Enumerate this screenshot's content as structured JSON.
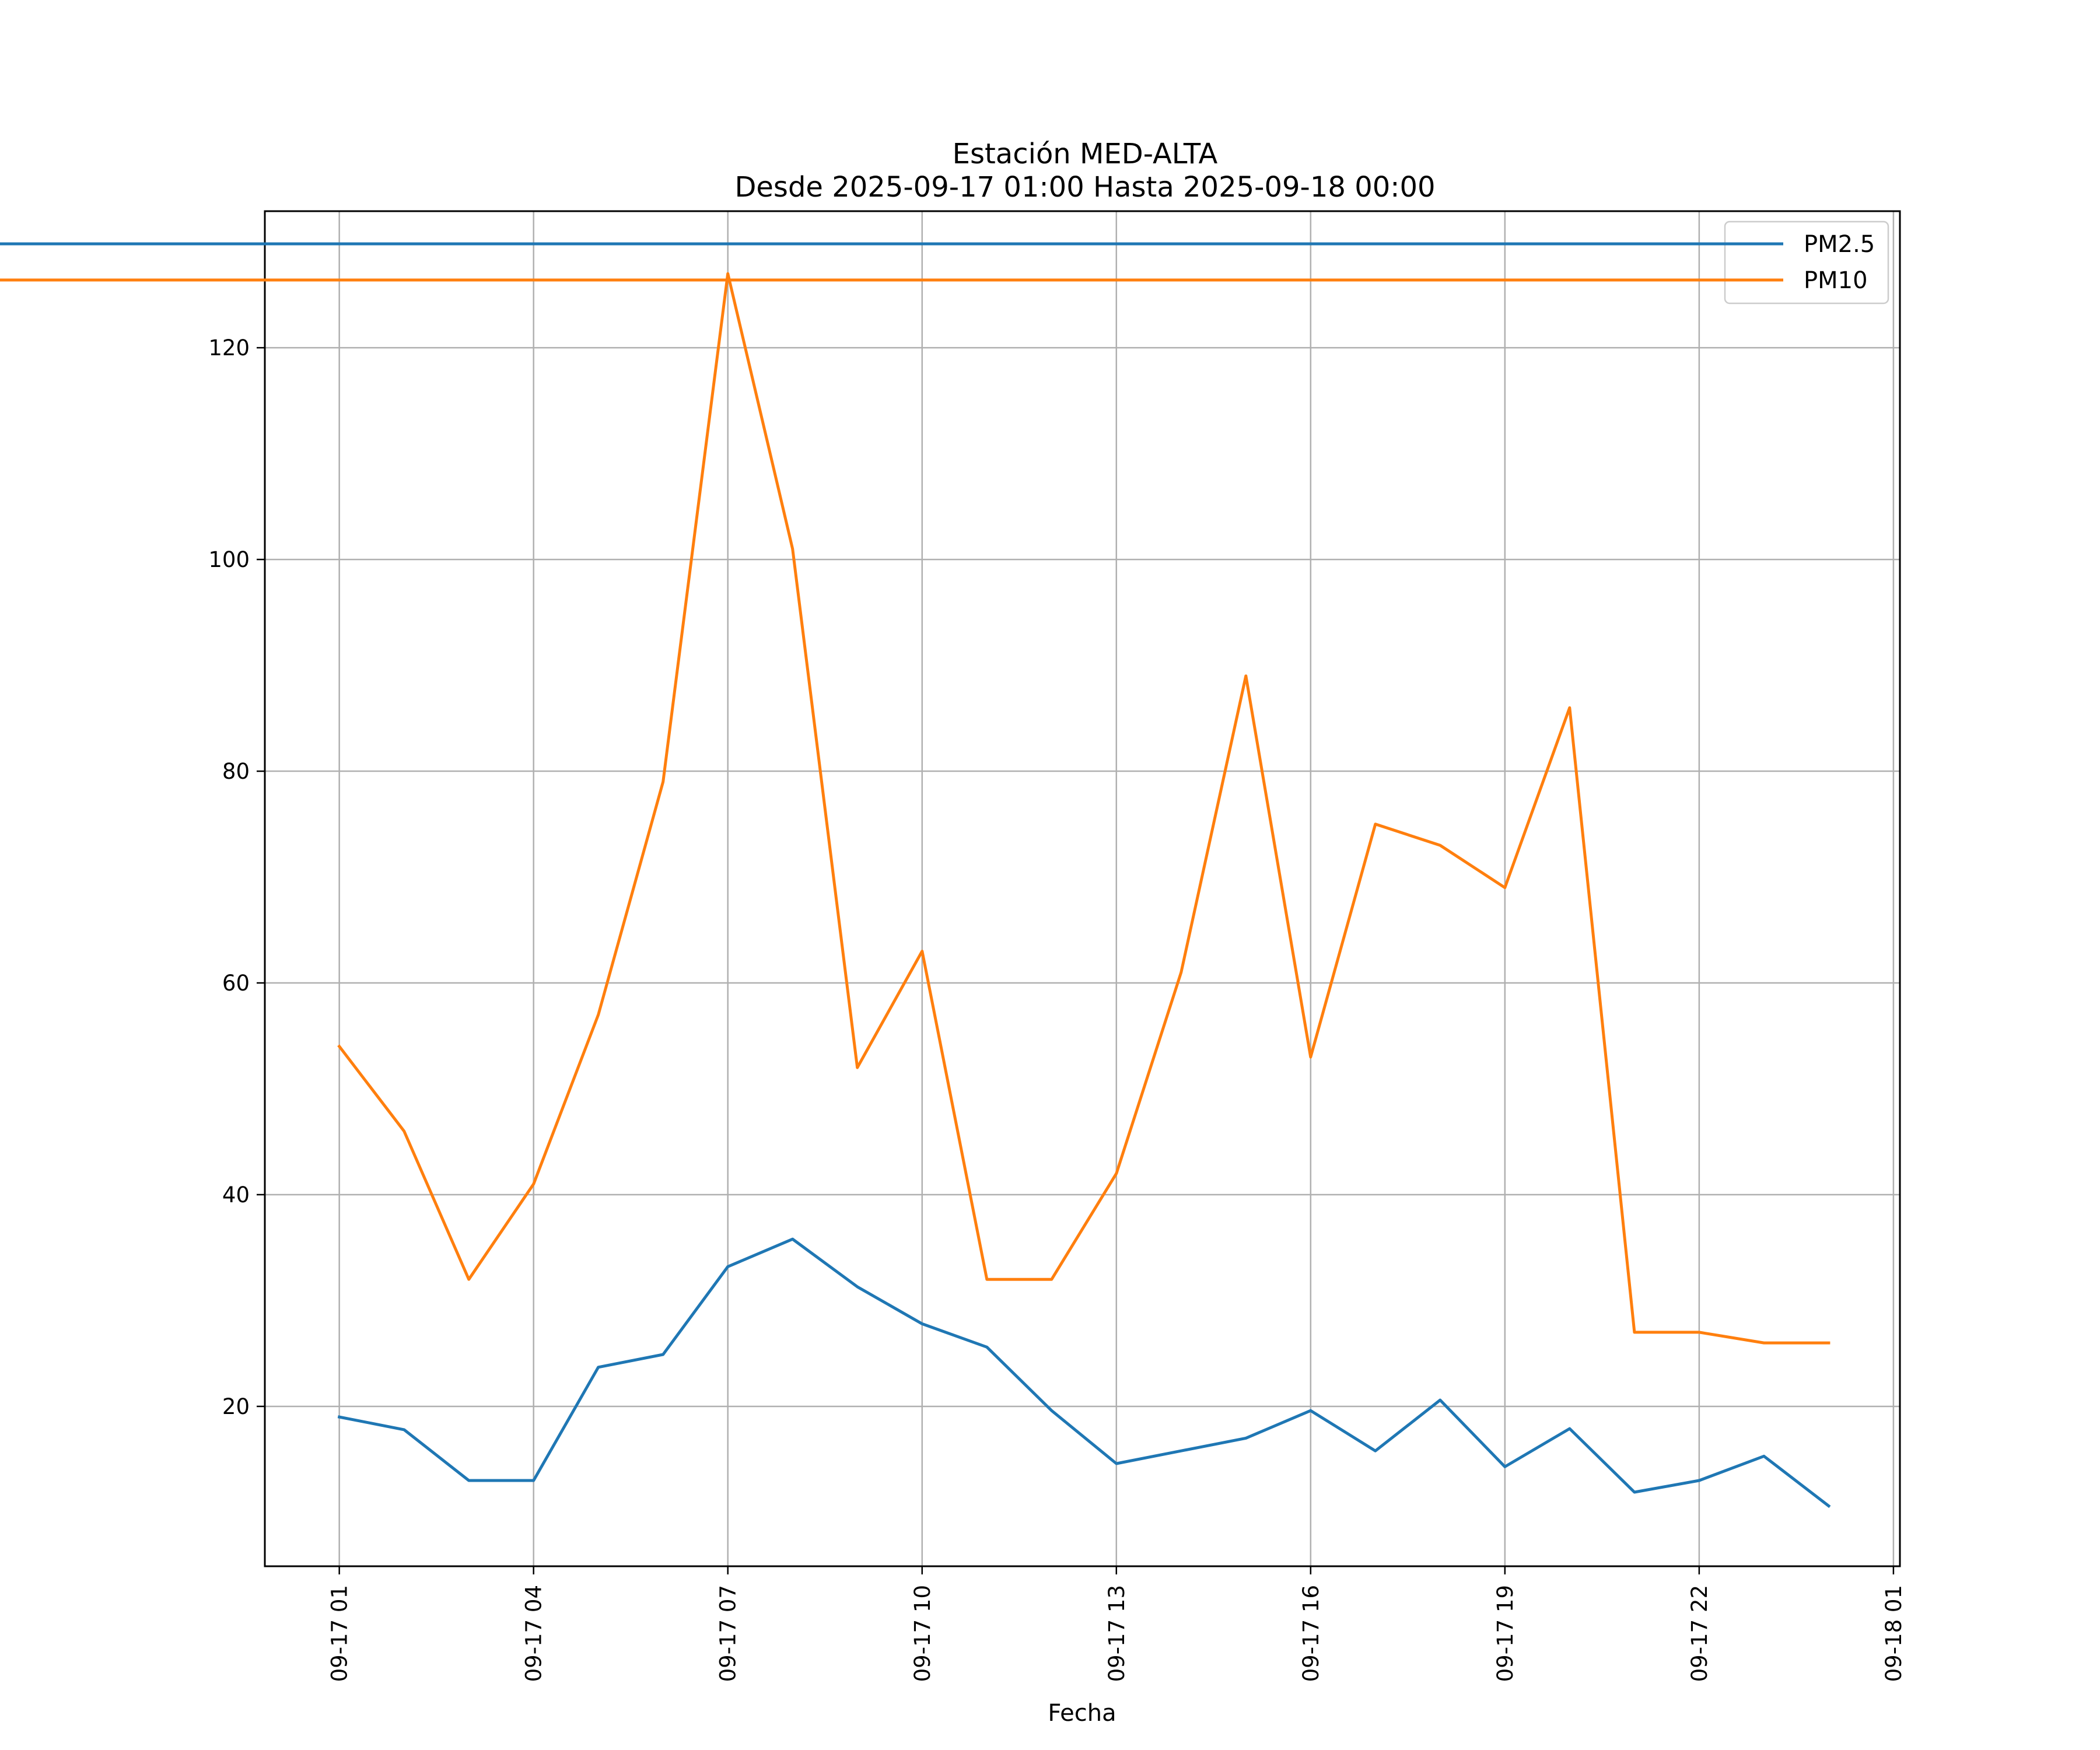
{
  "chart_data": {
    "type": "line",
    "title": "Estación MED-ALTA",
    "subtitle": "Desde 2025-09-17 01:00 Hasta 2025-09-18 00:00",
    "xlabel": "Fecha",
    "ylabel": "",
    "grid": true,
    "legend_position": "top-right",
    "x_hours": [
      1,
      2,
      3,
      4,
      5,
      6,
      7,
      8,
      9,
      10,
      11,
      12,
      13,
      14,
      15,
      16,
      17,
      18,
      19,
      20,
      21,
      22,
      23,
      24
    ],
    "xlim": [
      -0.15,
      25.1
    ],
    "ylim": [
      4.9,
      132.9
    ],
    "x_ticks": [
      {
        "value": 1,
        "label": "09-17 01"
      },
      {
        "value": 4,
        "label": "09-17 04"
      },
      {
        "value": 7,
        "label": "09-17 07"
      },
      {
        "value": 10,
        "label": "09-17 10"
      },
      {
        "value": 13,
        "label": "09-17 13"
      },
      {
        "value": 16,
        "label": "09-17 16"
      },
      {
        "value": 19,
        "label": "09-17 19"
      },
      {
        "value": 22,
        "label": "09-17 22"
      },
      {
        "value": 25,
        "label": "09-18 01"
      }
    ],
    "y_ticks": [
      {
        "value": 20,
        "label": "20"
      },
      {
        "value": 40,
        "label": "40"
      },
      {
        "value": 60,
        "label": "60"
      },
      {
        "value": 80,
        "label": "80"
      },
      {
        "value": 100,
        "label": "100"
      },
      {
        "value": 120,
        "label": "120"
      }
    ],
    "series": [
      {
        "name": "PM2.5",
        "color": "#1f77b4",
        "values": [
          19.0,
          17.8,
          13.0,
          13.0,
          23.7,
          24.9,
          33.2,
          35.8,
          31.3,
          27.8,
          25.6,
          19.6,
          14.6,
          15.8,
          17.0,
          19.6,
          15.8,
          20.6,
          14.3,
          17.9,
          11.9,
          13.0,
          15.3,
          10.6
        ]
      },
      {
        "name": "PM10",
        "color": "#ff7f0e",
        "values": [
          54,
          46,
          32,
          41,
          57,
          79,
          127,
          101,
          52,
          63,
          32,
          32,
          42,
          61,
          89,
          53,
          75,
          73,
          69,
          86,
          27,
          27,
          26,
          26
        ]
      }
    ]
  }
}
